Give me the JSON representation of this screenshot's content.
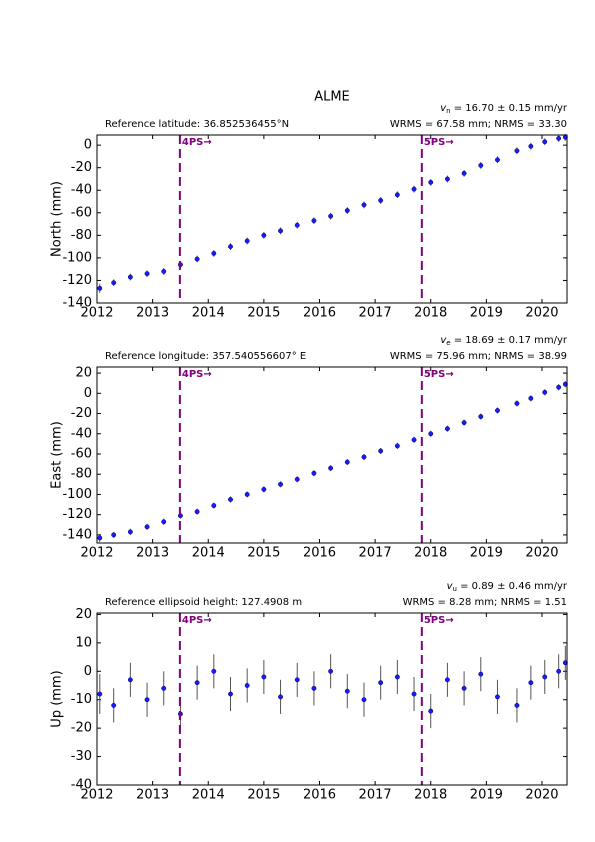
{
  "title": "ALME",
  "chart_data": [
    {
      "type": "scatter",
      "ylabel": "North (mm)",
      "velocity_symbol": "v",
      "velocity_subscript": "n",
      "velocity_text": " = 16.70 ± 0.15 mm/yr",
      "reference": "Reference latitude: 36.852536455°N",
      "stats": "WRMS = 67.58 mm; NRMS = 33.30",
      "xlim": [
        2012.0,
        2020.45
      ],
      "ylim": [
        -140,
        9
      ],
      "xticks": [
        2012,
        2013,
        2014,
        2015,
        2016,
        2017,
        2018,
        2019,
        2020
      ],
      "yticks": [
        0,
        -20,
        -40,
        -60,
        -80,
        -100,
        -120,
        -140
      ],
      "x": [
        2012.05,
        2012.3,
        2012.6,
        2012.9,
        2013.2,
        2013.5,
        2013.8,
        2014.1,
        2014.4,
        2014.7,
        2015.0,
        2015.3,
        2015.6,
        2015.9,
        2016.2,
        2016.5,
        2016.8,
        2017.1,
        2017.4,
        2017.7,
        2018.0,
        2018.3,
        2018.6,
        2018.9,
        2019.2,
        2019.55,
        2019.8,
        2020.05,
        2020.3,
        2020.42
      ],
      "values": [
        -127,
        -122,
        -117,
        -114,
        -112,
        -106,
        -101,
        -96,
        -90,
        -85,
        -80,
        -76,
        -71,
        -67,
        -63,
        -58,
        -53,
        -49,
        -44,
        -39,
        -33,
        -30,
        -25,
        -18,
        -13,
        -5,
        -1,
        3,
        6,
        7
      ],
      "errors": [
        4,
        3,
        3,
        3,
        3,
        3,
        3,
        3,
        3,
        3,
        3,
        3,
        3,
        3,
        3,
        3,
        3,
        3,
        3,
        3,
        3,
        3,
        3,
        3,
        3,
        3,
        3,
        3,
        3,
        3
      ],
      "color": "#1a1aff",
      "error_color": "#555555",
      "events": [
        {
          "x": 2013.49,
          "label": "4PS→"
        },
        {
          "x": 2017.84,
          "label": "5PS→"
        }
      ],
      "event_color": "#800080"
    },
    {
      "type": "scatter",
      "ylabel": "East (mm)",
      "velocity_symbol": "v",
      "velocity_subscript": "e",
      "velocity_text": " = 18.69 ± 0.17 mm/yr",
      "reference": "Reference longitude: 357.540556607° E",
      "stats": "WRMS = 75.96 mm; NRMS = 38.99",
      "xlim": [
        2012.0,
        2020.45
      ],
      "ylim": [
        -148,
        26
      ],
      "xticks": [
        2012,
        2013,
        2014,
        2015,
        2016,
        2017,
        2018,
        2019,
        2020
      ],
      "yticks": [
        20,
        0,
        -20,
        -40,
        -60,
        -80,
        -100,
        -120,
        -140
      ],
      "x": [
        2012.05,
        2012.3,
        2012.6,
        2012.9,
        2013.2,
        2013.5,
        2013.8,
        2014.1,
        2014.4,
        2014.7,
        2015.0,
        2015.3,
        2015.6,
        2015.9,
        2016.2,
        2016.5,
        2016.8,
        2017.1,
        2017.4,
        2017.7,
        2018.0,
        2018.3,
        2018.6,
        2018.9,
        2019.2,
        2019.55,
        2019.8,
        2020.05,
        2020.3,
        2020.42
      ],
      "values": [
        -143,
        -140,
        -137,
        -132,
        -127,
        -121,
        -117,
        -111,
        -105,
        -100,
        -95,
        -90,
        -85,
        -79,
        -74,
        -68,
        -63,
        -57,
        -52,
        -46,
        -40,
        -35,
        -29,
        -23,
        -17,
        -10,
        -5,
        1,
        6,
        9
      ],
      "errors": [
        4,
        3,
        3,
        3,
        3,
        3,
        3,
        3,
        3,
        3,
        3,
        3,
        3,
        3,
        3,
        3,
        3,
        3,
        3,
        3,
        3,
        3,
        3,
        3,
        3,
        3,
        3,
        3,
        3,
        3
      ],
      "color": "#1a1aff",
      "error_color": "#555555",
      "events": [
        {
          "x": 2013.49,
          "label": "4PS→"
        },
        {
          "x": 2017.84,
          "label": "5PS→"
        }
      ],
      "event_color": "#800080"
    },
    {
      "type": "scatter",
      "ylabel": "Up (mm)",
      "velocity_symbol": "v",
      "velocity_subscript": "u",
      "velocity_text": " = 0.89 ± 0.46 mm/yr",
      "reference": "Reference ellipsoid height: 127.4908 m",
      "stats": "WRMS = 8.28 mm; NRMS = 1.51",
      "xlim": [
        2012.0,
        2020.45
      ],
      "ylim": [
        -40,
        20.5
      ],
      "xticks": [
        2012,
        2013,
        2014,
        2015,
        2016,
        2017,
        2018,
        2019,
        2020
      ],
      "yticks": [
        20,
        10,
        0,
        -10,
        -20,
        -30,
        -40
      ],
      "x": [
        2012.05,
        2012.3,
        2012.6,
        2012.9,
        2013.2,
        2013.5,
        2013.8,
        2014.1,
        2014.4,
        2014.7,
        2015.0,
        2015.3,
        2015.6,
        2015.9,
        2016.2,
        2016.5,
        2016.8,
        2017.1,
        2017.4,
        2017.7,
        2018.0,
        2018.3,
        2018.6,
        2018.9,
        2019.2,
        2019.55,
        2019.8,
        2020.05,
        2020.3,
        2020.42
      ],
      "values": [
        -8,
        -12,
        -3,
        -10,
        -6,
        -15,
        -4,
        0,
        -8,
        -5,
        -2,
        -9,
        -3,
        -6,
        0,
        -7,
        -10,
        -4,
        -2,
        -8,
        -14,
        -3,
        -6,
        -1,
        -9,
        -12,
        -4,
        -2,
        0,
        3
      ],
      "errors": [
        7,
        6,
        6,
        6,
        6,
        6,
        6,
        6,
        6,
        6,
        6,
        6,
        6,
        6,
        6,
        6,
        6,
        6,
        6,
        6,
        6,
        6,
        6,
        6,
        6,
        6,
        6,
        6,
        6,
        6
      ],
      "color": "#1a1aff",
      "error_color": "#555555",
      "events": [
        {
          "x": 2013.49,
          "label": "4PS→"
        },
        {
          "x": 2017.84,
          "label": "5PS→"
        }
      ],
      "event_color": "#800080"
    }
  ]
}
